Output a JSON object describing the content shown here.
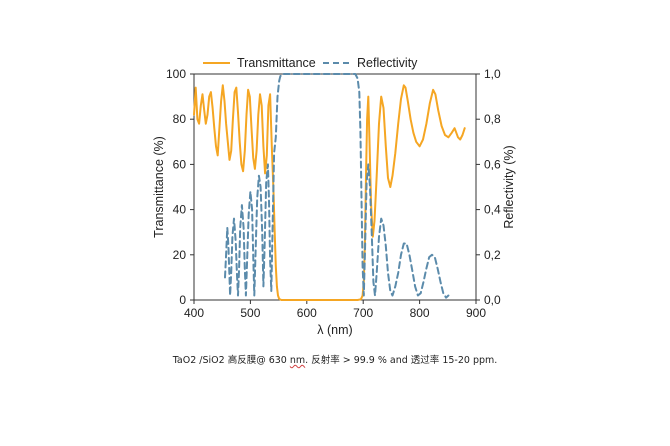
{
  "chart_data": {
    "type": "line",
    "xlabel": "λ (nm)",
    "ylabel": "Transmittance (%)",
    "y2label": "Reflectivity (%)",
    "xlim": [
      400,
      900
    ],
    "ylim": [
      0,
      100
    ],
    "y2lim": [
      0,
      1.0
    ],
    "x_ticks": [
      "400",
      "500",
      "600",
      "700",
      "800",
      "900"
    ],
    "y_ticks": [
      "0",
      "20",
      "40",
      "60",
      "80",
      "100"
    ],
    "y2_ticks": [
      "0,0",
      "0,2",
      "0,4",
      "0,6",
      "0,8",
      "1,0"
    ],
    "legend_position": "top",
    "grid": false,
    "series": [
      {
        "name": "Transmittance",
        "axis": "left",
        "color": "#f5a623",
        "dash": "solid",
        "points": [
          [
            400,
            82
          ],
          [
            403,
            94
          ],
          [
            406,
            80
          ],
          [
            409,
            78
          ],
          [
            412,
            86
          ],
          [
            415,
            91
          ],
          [
            418,
            84
          ],
          [
            421,
            78
          ],
          [
            424,
            82
          ],
          [
            427,
            90
          ],
          [
            430,
            92
          ],
          [
            433,
            85
          ],
          [
            436,
            76
          ],
          [
            439,
            68
          ],
          [
            442,
            64
          ],
          [
            445,
            76
          ],
          [
            448,
            88
          ],
          [
            451,
            95
          ],
          [
            454,
            88
          ],
          [
            457,
            78
          ],
          [
            460,
            70
          ],
          [
            463,
            62
          ],
          [
            466,
            66
          ],
          [
            469,
            80
          ],
          [
            472,
            92
          ],
          [
            475,
            94
          ],
          [
            478,
            83
          ],
          [
            481,
            70
          ],
          [
            484,
            60
          ],
          [
            487,
            57
          ],
          [
            490,
            66
          ],
          [
            493,
            82
          ],
          [
            496,
            93
          ],
          [
            499,
            90
          ],
          [
            502,
            76
          ],
          [
            505,
            63
          ],
          [
            508,
            58
          ],
          [
            511,
            66
          ],
          [
            514,
            82
          ],
          [
            517,
            91
          ],
          [
            520,
            86
          ],
          [
            523,
            68
          ],
          [
            526,
            56
          ],
          [
            529,
            64
          ],
          [
            532,
            86
          ],
          [
            535,
            91
          ],
          [
            538,
            68
          ],
          [
            541,
            48
          ],
          [
            543,
            30
          ],
          [
            545,
            15
          ],
          [
            547,
            6
          ],
          [
            549,
            2
          ],
          [
            551,
            0.5
          ],
          [
            555,
            0
          ],
          [
            580,
            0
          ],
          [
            620,
            0
          ],
          [
            660,
            0
          ],
          [
            690,
            0
          ],
          [
            696,
            0.3
          ],
          [
            699,
            2
          ],
          [
            701,
            8
          ],
          [
            703,
            25
          ],
          [
            705,
            55
          ],
          [
            707,
            80
          ],
          [
            709,
            90
          ],
          [
            711,
            72
          ],
          [
            714,
            42
          ],
          [
            717,
            28
          ],
          [
            720,
            35
          ],
          [
            724,
            55
          ],
          [
            728,
            78
          ],
          [
            732,
            90
          ],
          [
            736,
            85
          ],
          [
            740,
            68
          ],
          [
            744,
            54
          ],
          [
            748,
            50
          ],
          [
            752,
            55
          ],
          [
            757,
            65
          ],
          [
            762,
            78
          ],
          [
            767,
            89
          ],
          [
            772,
            95
          ],
          [
            775,
            94
          ],
          [
            779,
            88
          ],
          [
            784,
            80
          ],
          [
            789,
            74
          ],
          [
            794,
            70
          ],
          [
            800,
            68
          ],
          [
            806,
            71
          ],
          [
            812,
            78
          ],
          [
            818,
            87
          ],
          [
            824,
            93
          ],
          [
            828,
            91
          ],
          [
            833,
            84
          ],
          [
            839,
            77
          ],
          [
            845,
            73
          ],
          [
            851,
            72
          ],
          [
            857,
            74
          ],
          [
            862,
            76
          ],
          [
            868,
            72
          ],
          [
            872,
            71
          ],
          [
            876,
            73
          ],
          [
            880,
            76
          ]
        ]
      },
      {
        "name": "Reflectivity",
        "axis": "right",
        "color": "#5b8bab",
        "dash": "dashed",
        "points": [
          [
            455,
            0.1
          ],
          [
            457,
            0.2
          ],
          [
            459,
            0.32
          ],
          [
            461,
            0.24
          ],
          [
            463,
            0.1
          ],
          [
            464,
            0.02
          ],
          [
            466,
            0.12
          ],
          [
            468,
            0.28
          ],
          [
            471,
            0.36
          ],
          [
            474,
            0.26
          ],
          [
            476,
            0.12
          ],
          [
            478,
            0.02
          ],
          [
            480,
            0.14
          ],
          [
            482,
            0.32
          ],
          [
            485,
            0.42
          ],
          [
            488,
            0.32
          ],
          [
            490,
            0.14
          ],
          [
            492,
            0.02
          ],
          [
            494,
            0.16
          ],
          [
            497,
            0.38
          ],
          [
            500,
            0.48
          ],
          [
            503,
            0.4
          ],
          [
            505,
            0.2
          ],
          [
            507,
            0.02
          ],
          [
            509,
            0.2
          ],
          [
            512,
            0.45
          ],
          [
            515,
            0.55
          ],
          [
            518,
            0.5
          ],
          [
            521,
            0.3
          ],
          [
            523,
            0.06
          ],
          [
            525,
            0.22
          ],
          [
            528,
            0.52
          ],
          [
            531,
            0.6
          ],
          [
            533,
            0.44
          ],
          [
            535,
            0.18
          ],
          [
            537,
            0.04
          ],
          [
            539,
            0.28
          ],
          [
            542,
            0.65
          ],
          [
            545,
            0.72
          ],
          [
            548,
            0.9
          ],
          [
            551,
            0.97
          ],
          [
            553,
            0.99
          ],
          [
            556,
            1.0
          ],
          [
            580,
            1.0
          ],
          [
            620,
            1.0
          ],
          [
            660,
            1.0
          ],
          [
            686,
            1.0
          ],
          [
            690,
            0.98
          ],
          [
            693,
            0.92
          ],
          [
            695,
            0.75
          ],
          [
            697,
            0.45
          ],
          [
            699,
            0.15
          ],
          [
            701,
            0.02
          ],
          [
            703,
            0.2
          ],
          [
            706,
            0.52
          ],
          [
            709,
            0.6
          ],
          [
            712,
            0.5
          ],
          [
            715,
            0.3
          ],
          [
            718,
            0.08
          ],
          [
            721,
            0.02
          ],
          [
            724,
            0.12
          ],
          [
            728,
            0.28
          ],
          [
            732,
            0.36
          ],
          [
            736,
            0.33
          ],
          [
            740,
            0.24
          ],
          [
            744,
            0.12
          ],
          [
            748,
            0.04
          ],
          [
            752,
            0.02
          ],
          [
            757,
            0.06
          ],
          [
            762,
            0.12
          ],
          [
            767,
            0.2
          ],
          [
            772,
            0.25
          ],
          [
            777,
            0.25
          ],
          [
            782,
            0.2
          ],
          [
            787,
            0.13
          ],
          [
            792,
            0.06
          ],
          [
            797,
            0.02
          ],
          [
            802,
            0.03
          ],
          [
            807,
            0.08
          ],
          [
            812,
            0.14
          ],
          [
            817,
            0.19
          ],
          [
            822,
            0.2
          ],
          [
            827,
            0.19
          ],
          [
            832,
            0.14
          ],
          [
            837,
            0.08
          ],
          [
            842,
            0.03
          ],
          [
            847,
            0.01
          ],
          [
            851,
            0.02
          ]
        ]
      }
    ]
  },
  "caption": {
    "part1": "TaO2 /SiO2  高反膜@ 630 ",
    "part2": "nm",
    "part3": ".  反射率  > 99.9 % and  透过率  15-20 ppm."
  }
}
